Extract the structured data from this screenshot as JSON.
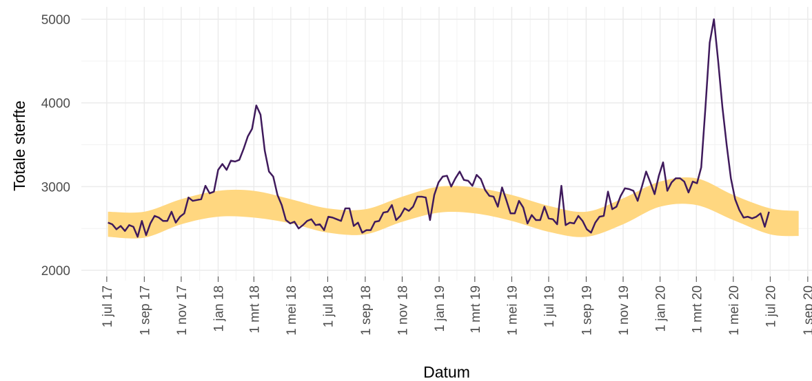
{
  "chart_data": {
    "type": "line",
    "xlabel": "Datum",
    "ylabel": "Totale sterfte",
    "xlim": [
      "2017-05-20",
      "2020-09-08"
    ],
    "ylim": [
      1877,
      5148
    ],
    "yticks": [
      2000,
      3000,
      4000,
      5000
    ],
    "xticks": [
      {
        "value": "2017-07-01",
        "label": "1 jul 17"
      },
      {
        "value": "2017-09-01",
        "label": "1 sep 17"
      },
      {
        "value": "2017-11-01",
        "label": "1 nov 17"
      },
      {
        "value": "2018-01-01",
        "label": "1 jan 18"
      },
      {
        "value": "2018-03-01",
        "label": "1 mrt 18"
      },
      {
        "value": "2018-05-01",
        "label": "1 mei 18"
      },
      {
        "value": "2018-07-01",
        "label": "1 jul 18"
      },
      {
        "value": "2018-09-01",
        "label": "1 sep 18"
      },
      {
        "value": "2018-11-01",
        "label": "1 nov 18"
      },
      {
        "value": "2019-01-01",
        "label": "1 jan 19"
      },
      {
        "value": "2019-03-01",
        "label": "1 mrt 19"
      },
      {
        "value": "2019-05-01",
        "label": "1 mei 19"
      },
      {
        "value": "2019-07-01",
        "label": "1 jul 19"
      },
      {
        "value": "2019-09-01",
        "label": "1 sep 19"
      },
      {
        "value": "2019-11-01",
        "label": "1 nov 19"
      },
      {
        "value": "2020-01-01",
        "label": "1 jan 20"
      },
      {
        "value": "2020-03-01",
        "label": "1 mrt 20"
      },
      {
        "value": "2020-05-01",
        "label": "1 mei 20"
      },
      {
        "value": "2020-07-01",
        "label": "1 jul 20"
      },
      {
        "value": "2020-09-01",
        "label": "1 sep 20"
      }
    ],
    "grid": true,
    "band": {
      "color": "#ffd780",
      "x": [
        "2017-07-03",
        "2017-09-01",
        "2017-11-01",
        "2018-01-01",
        "2018-03-01",
        "2018-05-01",
        "2018-07-01",
        "2018-09-01",
        "2018-11-01",
        "2019-01-01",
        "2019-03-01",
        "2019-05-01",
        "2019-07-01",
        "2019-09-01",
        "2019-11-01",
        "2020-01-01",
        "2020-03-01",
        "2020-05-01",
        "2020-07-01",
        "2020-08-17"
      ],
      "lower": [
        2400,
        2390,
        2550,
        2640,
        2630,
        2560,
        2450,
        2430,
        2580,
        2690,
        2680,
        2590,
        2460,
        2400,
        2550,
        2760,
        2780,
        2600,
        2430,
        2410
      ],
      "upper": [
        2700,
        2700,
        2850,
        2950,
        2950,
        2850,
        2740,
        2730,
        2880,
        3000,
        2990,
        2900,
        2770,
        2700,
        2860,
        3060,
        3100,
        2900,
        2740,
        2710
      ]
    },
    "x": [
      "2017-07-03",
      "2017-07-10",
      "2017-07-17",
      "2017-07-24",
      "2017-07-31",
      "2017-08-07",
      "2017-08-14",
      "2017-08-21",
      "2017-08-28",
      "2017-09-04",
      "2017-09-11",
      "2017-09-18",
      "2017-09-25",
      "2017-10-02",
      "2017-10-09",
      "2017-10-16",
      "2017-10-23",
      "2017-10-30",
      "2017-11-06",
      "2017-11-13",
      "2017-11-20",
      "2017-11-27",
      "2017-12-04",
      "2017-12-11",
      "2017-12-18",
      "2017-12-25",
      "2018-01-01",
      "2018-01-08",
      "2018-01-15",
      "2018-01-22",
      "2018-01-29",
      "2018-02-05",
      "2018-02-12",
      "2018-02-19",
      "2018-02-26",
      "2018-03-05",
      "2018-03-12",
      "2018-03-19",
      "2018-03-26",
      "2018-04-02",
      "2018-04-09",
      "2018-04-16",
      "2018-04-23",
      "2018-04-30",
      "2018-05-07",
      "2018-05-14",
      "2018-05-21",
      "2018-05-28",
      "2018-06-04",
      "2018-06-11",
      "2018-06-18",
      "2018-06-25",
      "2018-07-02",
      "2018-07-09",
      "2018-07-16",
      "2018-07-23",
      "2018-07-30",
      "2018-08-06",
      "2018-08-13",
      "2018-08-20",
      "2018-08-27",
      "2018-09-03",
      "2018-09-10",
      "2018-09-17",
      "2018-09-24",
      "2018-10-01",
      "2018-10-08",
      "2018-10-15",
      "2018-10-22",
      "2018-10-29",
      "2018-11-05",
      "2018-11-12",
      "2018-11-19",
      "2018-11-26",
      "2018-12-03",
      "2018-12-10",
      "2018-12-17",
      "2018-12-24",
      "2018-12-31",
      "2019-01-07",
      "2019-01-14",
      "2019-01-21",
      "2019-01-28",
      "2019-02-04",
      "2019-02-11",
      "2019-02-18",
      "2019-02-25",
      "2019-03-04",
      "2019-03-11",
      "2019-03-18",
      "2019-03-25",
      "2019-04-01",
      "2019-04-08",
      "2019-04-15",
      "2019-04-22",
      "2019-04-29",
      "2019-05-06",
      "2019-05-13",
      "2019-05-20",
      "2019-05-27",
      "2019-06-03",
      "2019-06-10",
      "2019-06-17",
      "2019-06-24",
      "2019-07-01",
      "2019-07-08",
      "2019-07-15",
      "2019-07-22",
      "2019-07-29",
      "2019-08-05",
      "2019-08-12",
      "2019-08-19",
      "2019-08-26",
      "2019-09-02",
      "2019-09-09",
      "2019-09-16",
      "2019-09-23",
      "2019-09-30",
      "2019-10-07",
      "2019-10-14",
      "2019-10-21",
      "2019-10-28",
      "2019-11-04",
      "2019-11-11",
      "2019-11-18",
      "2019-11-25",
      "2019-12-02",
      "2019-12-09",
      "2019-12-16",
      "2019-12-23",
      "2019-12-30",
      "2020-01-06",
      "2020-01-13",
      "2020-01-20",
      "2020-01-27",
      "2020-02-03",
      "2020-02-10",
      "2020-02-17",
      "2020-02-24",
      "2020-03-02",
      "2020-03-09",
      "2020-03-16",
      "2020-03-23",
      "2020-03-30",
      "2020-04-06",
      "2020-04-13",
      "2020-04-20",
      "2020-04-27",
      "2020-05-04",
      "2020-05-11",
      "2020-05-18",
      "2020-05-25",
      "2020-06-01",
      "2020-06-08",
      "2020-06-15",
      "2020-06-22",
      "2020-06-29"
    ],
    "series": [
      {
        "color": "#3f1a5c",
        "values": [
          2570,
          2550,
          2490,
          2530,
          2470,
          2540,
          2520,
          2400,
          2590,
          2420,
          2560,
          2650,
          2630,
          2590,
          2590,
          2700,
          2570,
          2640,
          2680,
          2870,
          2830,
          2840,
          2850,
          3010,
          2920,
          2940,
          3200,
          3270,
          3200,
          3310,
          3300,
          3320,
          3450,
          3600,
          3690,
          3970,
          3860,
          3430,
          3180,
          3120,
          2900,
          2780,
          2600,
          2560,
          2580,
          2500,
          2540,
          2590,
          2610,
          2540,
          2550,
          2480,
          2640,
          2630,
          2610,
          2590,
          2740,
          2740,
          2530,
          2570,
          2450,
          2480,
          2480,
          2580,
          2590,
          2690,
          2700,
          2780,
          2600,
          2650,
          2740,
          2710,
          2760,
          2880,
          2880,
          2870,
          2600,
          2900,
          3050,
          3120,
          3130,
          3000,
          3100,
          3180,
          3080,
          3070,
          3010,
          3140,
          3090,
          2960,
          2890,
          2880,
          2760,
          2990,
          2840,
          2680,
          2680,
          2830,
          2750,
          2560,
          2660,
          2600,
          2600,
          2760,
          2620,
          2610,
          2550,
          3010,
          2540,
          2570,
          2560,
          2650,
          2590,
          2490,
          2450,
          2570,
          2640,
          2650,
          2940,
          2730,
          2760,
          2890,
          2980,
          2970,
          2950,
          2830,
          3000,
          3180,
          3050,
          2910,
          3130,
          3290,
          2950,
          3050,
          3100,
          3100,
          3060,
          2930,
          3060,
          3040,
          3230,
          3950,
          4720,
          5000,
          4500,
          3950,
          3500,
          3100,
          2850,
          2720,
          2630,
          2640,
          2620,
          2640,
          2680,
          2520,
          2700
        ]
      }
    ]
  }
}
